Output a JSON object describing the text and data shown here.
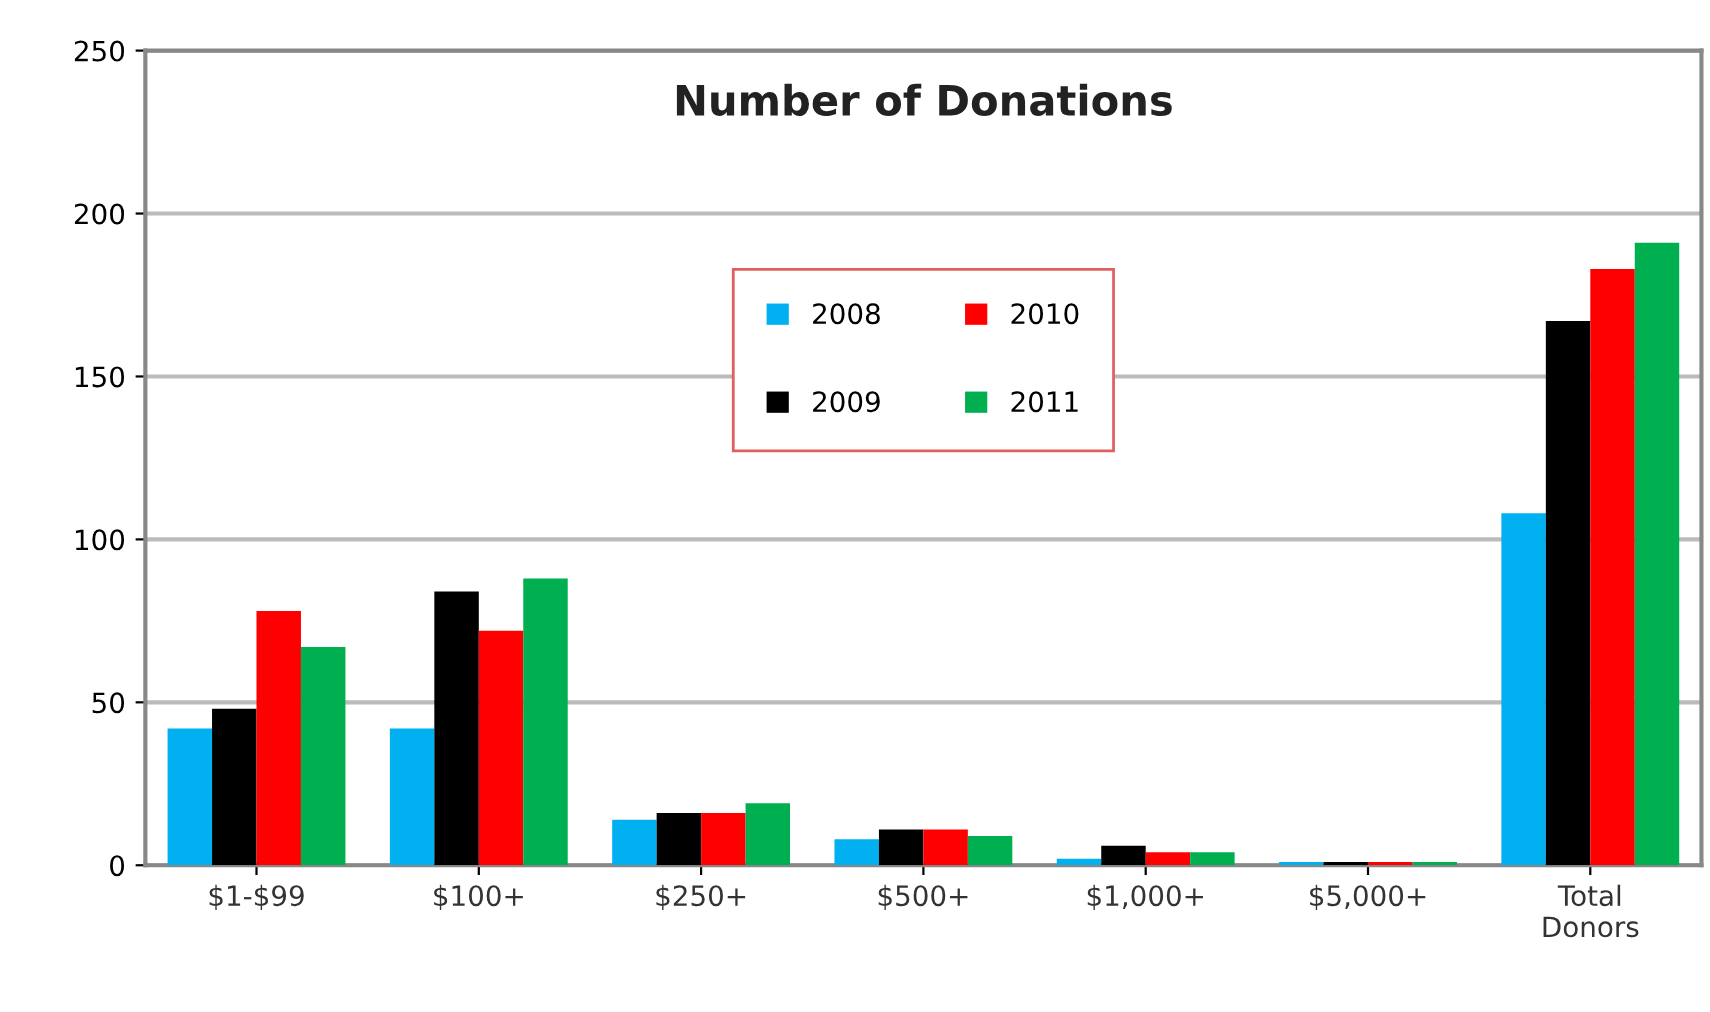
{
  "chart_data": {
    "type": "bar",
    "title": "Number of Donations",
    "categories": [
      "$1-$99",
      "$100+",
      "$250+",
      "$500+",
      "$1,000+",
      "$5,000+",
      "Total\nDonors"
    ],
    "series": [
      {
        "name": "2008",
        "color": "#00b0f0",
        "values": [
          42,
          42,
          14,
          8,
          2,
          1,
          108
        ]
      },
      {
        "name": "2009",
        "color": "#000000",
        "values": [
          48,
          84,
          16,
          11,
          6,
          1,
          167
        ]
      },
      {
        "name": "2010",
        "color": "#ff0000",
        "values": [
          78,
          72,
          16,
          11,
          4,
          1,
          183
        ]
      },
      {
        "name": "2011",
        "color": "#00b050",
        "values": [
          67,
          88,
          19,
          9,
          4,
          1,
          191
        ]
      }
    ],
    "ylim": [
      0,
      250
    ],
    "yticks": [
      0,
      50,
      100,
      150,
      200,
      250
    ],
    "grid": "y",
    "legend": "center"
  }
}
